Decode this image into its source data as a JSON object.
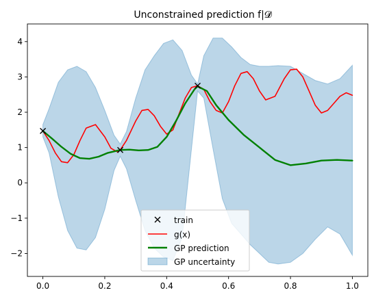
{
  "chart_data": {
    "type": "line",
    "title": "Unconstrained prediction f|𝓓",
    "xlabel": "",
    "ylabel": "",
    "xlim": [
      -0.05,
      1.05
    ],
    "ylim": [
      -2.65,
      4.5
    ],
    "x_ticks": [
      0.0,
      0.2,
      0.4,
      0.6,
      0.8,
      1.0
    ],
    "x_tick_labels": [
      "0.0",
      "0.2",
      "0.4",
      "0.6",
      "0.8",
      "1.0"
    ],
    "y_ticks": [
      -2,
      -1,
      0,
      1,
      2,
      3,
      4
    ],
    "y_tick_labels": [
      "−2",
      "−1",
      "0",
      "1",
      "2",
      "3",
      "4"
    ],
    "grid": false,
    "legend_position": "lower-center",
    "train": {
      "name": "train",
      "color": "#000000",
      "x": [
        0.0,
        0.25,
        0.5
      ],
      "y": [
        1.47,
        0.93,
        2.75
      ]
    },
    "series": [
      {
        "name": "g(x)",
        "color": "#ff0000",
        "x": [
          0.0,
          0.02,
          0.04,
          0.06,
          0.08,
          0.1,
          0.12,
          0.14,
          0.17,
          0.2,
          0.22,
          0.24,
          0.25,
          0.27,
          0.3,
          0.32,
          0.34,
          0.36,
          0.38,
          0.4,
          0.42,
          0.44,
          0.46,
          0.48,
          0.5,
          0.52,
          0.54,
          0.56,
          0.58,
          0.6,
          0.62,
          0.64,
          0.66,
          0.68,
          0.7,
          0.72,
          0.75,
          0.78,
          0.8,
          0.82,
          0.84,
          0.86,
          0.88,
          0.9,
          0.92,
          0.94,
          0.96,
          0.98,
          1.0
        ],
        "y": [
          1.47,
          1.2,
          0.85,
          0.6,
          0.57,
          0.8,
          1.2,
          1.55,
          1.65,
          1.3,
          0.98,
          0.88,
          0.93,
          1.2,
          1.75,
          2.05,
          2.08,
          1.9,
          1.6,
          1.38,
          1.5,
          1.95,
          2.4,
          2.7,
          2.75,
          2.65,
          2.3,
          2.05,
          1.98,
          2.3,
          2.75,
          3.1,
          3.15,
          2.95,
          2.6,
          2.35,
          2.45,
          2.95,
          3.2,
          3.22,
          3.0,
          2.6,
          2.2,
          1.98,
          2.05,
          2.25,
          2.45,
          2.55,
          2.48
        ]
      },
      {
        "name": "GP prediction",
        "color": "#008000",
        "x": [
          0.0,
          0.03,
          0.06,
          0.09,
          0.12,
          0.15,
          0.18,
          0.21,
          0.25,
          0.28,
          0.31,
          0.34,
          0.37,
          0.4,
          0.43,
          0.46,
          0.49,
          0.5,
          0.53,
          0.56,
          0.6,
          0.65,
          0.7,
          0.75,
          0.8,
          0.85,
          0.9,
          0.95,
          1.0
        ],
        "y": [
          1.47,
          1.25,
          1.02,
          0.82,
          0.7,
          0.68,
          0.74,
          0.85,
          0.93,
          0.94,
          0.92,
          0.93,
          1.02,
          1.3,
          1.75,
          2.25,
          2.65,
          2.73,
          2.6,
          2.2,
          1.78,
          1.35,
          1.0,
          0.65,
          0.5,
          0.55,
          0.63,
          0.65,
          0.63
        ]
      }
    ],
    "band": {
      "name": "GP uncertainty",
      "color": "#1f77b4",
      "x": [
        0.0,
        0.02,
        0.05,
        0.08,
        0.11,
        0.14,
        0.17,
        0.2,
        0.23,
        0.25,
        0.27,
        0.3,
        0.33,
        0.36,
        0.39,
        0.42,
        0.45,
        0.48,
        0.5,
        0.52,
        0.55,
        0.58,
        0.61,
        0.64,
        0.67,
        0.7,
        0.73,
        0.76,
        0.8,
        0.84,
        0.88,
        0.92,
        0.96,
        1.0
      ],
      "upper": [
        1.65,
        2.1,
        2.85,
        3.2,
        3.3,
        3.15,
        2.7,
        2.05,
        1.35,
        1.1,
        1.45,
        2.4,
        3.2,
        3.6,
        3.95,
        4.05,
        3.75,
        3.05,
        2.8,
        3.6,
        4.1,
        4.1,
        3.85,
        3.55,
        3.35,
        3.3,
        3.3,
        3.32,
        3.3,
        3.1,
        2.9,
        2.8,
        2.95,
        3.33
      ],
      "lower": [
        1.3,
        0.85,
        -0.4,
        -1.35,
        -1.85,
        -1.9,
        -1.55,
        -0.75,
        0.35,
        0.75,
        0.4,
        -0.5,
        -1.35,
        -1.85,
        -2.1,
        -2.2,
        -1.55,
        0.95,
        2.6,
        2.4,
        0.95,
        -0.45,
        -1.15,
        -1.45,
        -1.75,
        -2.0,
        -2.25,
        -2.3,
        -2.25,
        -2.0,
        -1.6,
        -1.25,
        -1.45,
        -2.05
      ]
    }
  },
  "legend": {
    "train": "train",
    "g": "g(x)",
    "gp": "GP prediction",
    "unc": "GP uncertainty"
  }
}
